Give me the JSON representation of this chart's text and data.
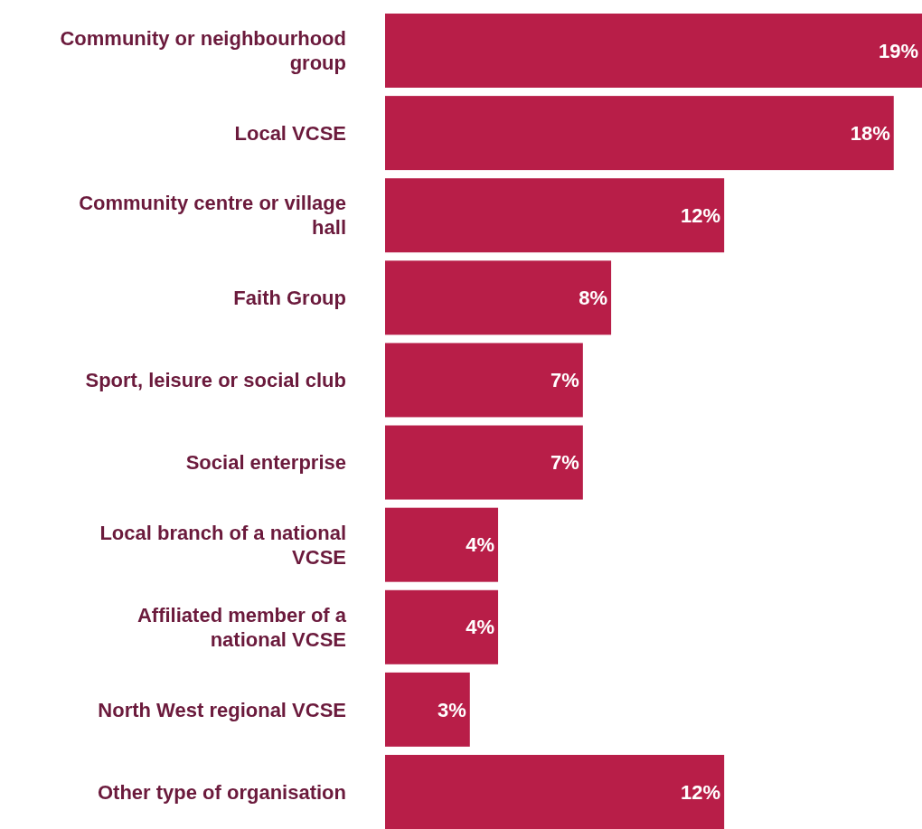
{
  "chart_data": {
    "type": "bar",
    "orientation": "horizontal",
    "categories": [
      "Community or neighbourhood group",
      "Local VCSE",
      "Community centre or village hall",
      "Faith Group",
      "Sport, leisure or social club",
      "Social enterprise",
      "Local branch of a national VCSE",
      "Affiliated member of a national VCSE",
      "North West regional VCSE",
      "Other type of organisation"
    ],
    "values": [
      19,
      18,
      12,
      8,
      7,
      7,
      4,
      4,
      3,
      12
    ],
    "value_labels": [
      "19%",
      "18%",
      "12%",
      "8%",
      "7%",
      "7%",
      "4%",
      "4%",
      "3%",
      "12%"
    ],
    "color": "#b81e48"
  }
}
